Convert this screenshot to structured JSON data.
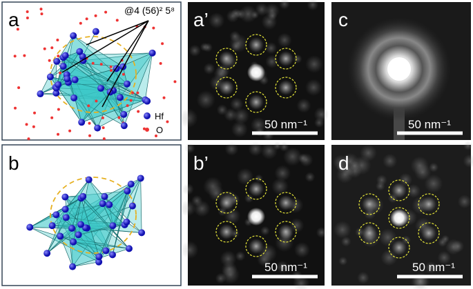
{
  "panels": {
    "a": {
      "label": "a",
      "annotation": "@4 (56)² 5⁸",
      "legend": [
        "Hf",
        "O"
      ]
    },
    "a_prime": {
      "label": "a’",
      "scale_bar": "50 nm⁻¹"
    },
    "c": {
      "label": "c",
      "scale_bar": "50 nm⁻¹"
    },
    "b": {
      "label": "b"
    },
    "b_prime": {
      "label": "b’",
      "scale_bar": "50 nm⁻¹"
    },
    "d": {
      "label": "d",
      "scale_bar": "50 nm⁻¹"
    }
  }
}
